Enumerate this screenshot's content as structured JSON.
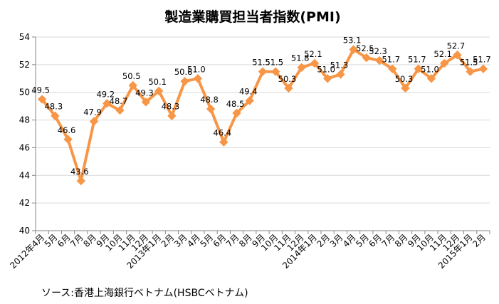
{
  "chart_data": {
    "type": "line",
    "title": "製造業購買担当者指数(PMI)",
    "xlabel": "",
    "ylabel": "",
    "ylim": [
      40,
      54
    ],
    "yticks": [
      40,
      42,
      44,
      46,
      48,
      50,
      52,
      54
    ],
    "grid": true,
    "legend": "none",
    "categories": [
      "2012年4月",
      "5月",
      "6月",
      "7月",
      "8月",
      "9月",
      "10月",
      "11月",
      "12月",
      "2013年1月",
      "2月",
      "3月",
      "4月",
      "5月",
      "6月",
      "7月",
      "8月",
      "9月",
      "10月",
      "11月",
      "12月",
      "2014年1月",
      "2月",
      "3月",
      "4月",
      "5月",
      "6月",
      "7月",
      "8月",
      "9月",
      "10月",
      "11月",
      "12月",
      "2015年1月",
      "2月"
    ],
    "values": [
      49.5,
      48.3,
      46.6,
      43.6,
      47.9,
      49.2,
      48.7,
      50.5,
      49.3,
      50.1,
      48.3,
      50.8,
      51.0,
      48.8,
      46.4,
      48.5,
      49.4,
      51.5,
      51.5,
      50.3,
      51.8,
      52.1,
      51.0,
      51.3,
      53.1,
      52.5,
      52.3,
      51.7,
      50.3,
      51.7,
      51.0,
      52.1,
      52.7,
      51.5,
      51.7
    ],
    "labels": [
      "49.5",
      "48.3",
      "46.6",
      "43.6",
      "47.9",
      "49.2",
      "48.7",
      "50.5",
      "49.3",
      "50.1",
      "48.3",
      "50.8",
      "51.0",
      "48.8",
      "46.4",
      "48.5",
      "49.4",
      "51.5",
      "51.5",
      "50.3",
      "51.8",
      "52.1",
      "51.0",
      "51.3",
      "53.1",
      "52.5",
      "52.3",
      "51.7",
      "50.3",
      "51.7",
      "51.0",
      "52.1",
      "52.7",
      "51.5",
      "51.7"
    ],
    "colors": {
      "line": "#F79646",
      "marker": "#F79646",
      "grid": "#D9D9D9",
      "axis": "#868686"
    }
  },
  "source": "ソース:香港上海銀行ベトナム(HSBCベトナム)"
}
